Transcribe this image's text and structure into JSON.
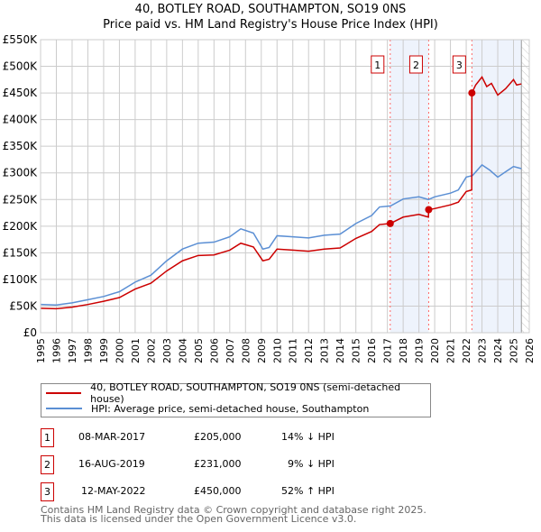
{
  "chart_data": {
    "type": "line",
    "title": "40, BOTLEY ROAD, SOUTHAMPTON, SO19 0NS",
    "subtitle": "Price paid vs. HM Land Registry's House Price Index (HPI)",
    "xlim": [
      1995,
      2026
    ],
    "ylim": [
      0,
      550000
    ],
    "x_ticks": [
      "1995",
      "1996",
      "1997",
      "1998",
      "1999",
      "2000",
      "2001",
      "2002",
      "2003",
      "2004",
      "2005",
      "2006",
      "2007",
      "2008",
      "2009",
      "2010",
      "2011",
      "2012",
      "2013",
      "2014",
      "2015",
      "2016",
      "2017",
      "2018",
      "2019",
      "2020",
      "2021",
      "2022",
      "2023",
      "2024",
      "2025",
      "2026"
    ],
    "y_ticks": [
      {
        "v": 0,
        "l": "£0"
      },
      {
        "v": 50000,
        "l": "£50K"
      },
      {
        "v": 100000,
        "l": "£100K"
      },
      {
        "v": 150000,
        "l": "£150K"
      },
      {
        "v": 200000,
        "l": "£200K"
      },
      {
        "v": 250000,
        "l": "£250K"
      },
      {
        "v": 300000,
        "l": "£300K"
      },
      {
        "v": 350000,
        "l": "£350K"
      },
      {
        "v": 400000,
        "l": "£400K"
      },
      {
        "v": 450000,
        "l": "£450K"
      },
      {
        "v": 500000,
        "l": "£500K"
      },
      {
        "v": 550000,
        "l": "£550K"
      }
    ],
    "grid": true,
    "series": [
      {
        "name": "40, BOTLEY ROAD, SOUTHAMPTON, SO19 0NS (semi-detached house)",
        "color": "#cc0000",
        "x": [
          1995,
          1996,
          1997,
          1998,
          1999,
          2000,
          2001,
          2002,
          2003,
          2004,
          2005,
          2006,
          2007,
          2007.7,
          2008.5,
          2009.1,
          2009.5,
          2010,
          2011,
          2012,
          2013,
          2014,
          2015,
          2016,
          2016.5,
          2017.18,
          2018,
          2019,
          2019.6,
          2019.62,
          2020,
          2021,
          2021.5,
          2022,
          2022.35,
          2022.36,
          2022.6,
          2023,
          2023.3,
          2023.6,
          2024,
          2024.5,
          2025,
          2025.2,
          2025.5
        ],
        "y": [
          46000,
          45000,
          48000,
          53000,
          59000,
          66000,
          82000,
          93000,
          116000,
          135000,
          145000,
          146000,
          155000,
          168000,
          161000,
          135000,
          138000,
          157000,
          155000,
          153000,
          157000,
          159000,
          177000,
          190000,
          203000,
          205000,
          217000,
          222000,
          217000,
          231000,
          233000,
          240000,
          245000,
          265000,
          268000,
          450000,
          465000,
          480000,
          462000,
          468000,
          446000,
          458000,
          475000,
          465000,
          467000
        ]
      },
      {
        "name": "HPI: Average price, semi-detached house, Southampton",
        "color": "#5b8fd4",
        "x": [
          1995,
          1996,
          1997,
          1998,
          1999,
          2000,
          2001,
          2002,
          2003,
          2004,
          2005,
          2006,
          2007,
          2007.7,
          2008.5,
          2009.1,
          2009.5,
          2010,
          2011,
          2012,
          2013,
          2014,
          2015,
          2016,
          2016.5,
          2017.2,
          2018,
          2019,
          2019.6,
          2020,
          2021,
          2021.5,
          2022,
          2022.4,
          2023,
          2023.5,
          2024,
          2024.5,
          2025,
          2025.5
        ],
        "y": [
          53000,
          52000,
          56000,
          62000,
          68000,
          77000,
          95000,
          108000,
          135000,
          157000,
          168000,
          170000,
          180000,
          195000,
          187000,
          157000,
          160000,
          182000,
          180000,
          178000,
          183000,
          185000,
          205000,
          220000,
          236000,
          238000,
          251000,
          255000,
          250000,
          255000,
          262000,
          268000,
          292000,
          295000,
          315000,
          305000,
          292000,
          302000,
          312000,
          308000
        ]
      }
    ],
    "sales": [
      {
        "label": "1",
        "date": "08-MAR-2017",
        "x": 2017.18,
        "price": "£205,000",
        "value": 205000,
        "hpi": "14% ↓ HPI"
      },
      {
        "label": "2",
        "date": "16-AUG-2019",
        "x": 2019.62,
        "price": "£231,000",
        "value": 231000,
        "hpi": "9% ↓ HPI"
      },
      {
        "label": "3",
        "date": "12-MAY-2022",
        "x": 2022.36,
        "price": "£450,000",
        "value": 450000,
        "hpi": "52% ↑ HPI"
      }
    ],
    "forecast_from": 2025.5,
    "legend_placement": "below"
  },
  "footer": [
    "Contains HM Land Registry data © Crown copyright and database right 2025.",
    "This data is licensed under the Open Government Licence v3.0."
  ]
}
